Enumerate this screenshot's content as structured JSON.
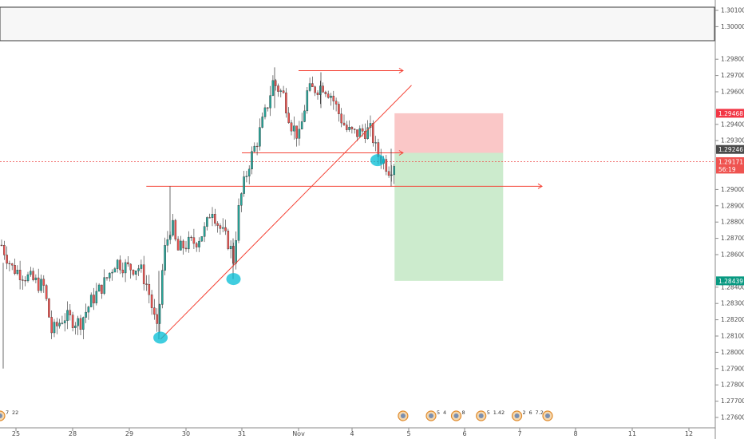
{
  "chart_data": {
    "type": "candlestick",
    "x_ticks": [
      "25",
      "28",
      "29",
      "30",
      "31",
      "Nov",
      "4",
      "5",
      "6",
      "7",
      "8",
      "11",
      "12"
    ],
    "y_ticks": [
      "1.30100",
      "1.30000",
      "1.29800",
      "1.29700",
      "1.29600",
      "1.29400",
      "1.29300",
      "1.29000",
      "1.28900",
      "1.28800",
      "1.28700",
      "1.28600",
      "1.28400",
      "1.28300",
      "1.28200",
      "1.28100",
      "1.28000",
      "1.27900",
      "1.27800",
      "1.27700",
      "1.27600"
    ],
    "ylim": [
      1.2756,
      1.3015
    ],
    "grid": false,
    "colors": {
      "up": "#26a69a",
      "down": "#ef5350",
      "wick": "#2b2b2b",
      "line": "#f44336",
      "marker": "#00bcd4"
    },
    "price_badges": [
      {
        "label": "1.29468",
        "value": 1.29468,
        "color": "#f23645"
      },
      {
        "label": "1.29246",
        "value": 1.29246,
        "color": "#4a4a4a"
      },
      {
        "label": "1.29171",
        "value": 1.29171,
        "color": "#ef5350"
      },
      {
        "label": "56:19",
        "value": 1.29125,
        "color": "#ef5350"
      },
      {
        "label": "1.28439",
        "value": 1.28439,
        "color": "#089981"
      }
    ],
    "horizontal_rays": [
      {
        "value": 1.2973,
        "start": "Nov",
        "end": "4.9"
      },
      {
        "value": 1.29225,
        "start": "31",
        "end": "4.9"
      },
      {
        "value": 1.2902,
        "start": "29.3",
        "end": "7.4"
      }
    ],
    "trendline": {
      "from": [
        29.55,
        1.2808
      ],
      "to": [
        5.05,
        1.2964
      ]
    },
    "highlighted_points": [
      {
        "x": 29.55,
        "y": 1.2809
      },
      {
        "x": 30.85,
        "y": 1.2845
      },
      {
        "x": 4.45,
        "y": 1.2918
      }
    ],
    "risk_reward": {
      "entry": 1.29225,
      "stop": 1.29468,
      "target": 1.28439,
      "from": "4.75",
      "to": "6.7"
    },
    "dashed_price_line": 1.29171,
    "top_band": {
      "from": 1.3011,
      "to": 1.2991
    },
    "calendar_events": [
      {
        "x": "4.9",
        "labels": []
      },
      {
        "x": "5.4",
        "labels": [
          "5",
          "4"
        ]
      },
      {
        "x": "5.85",
        "labels": [
          "8"
        ]
      },
      {
        "x": "6.3",
        "labels": [
          "5",
          "1.42"
        ]
      },
      {
        "x": "6.95",
        "labels": [
          "2",
          "6",
          "7.2"
        ]
      },
      {
        "x": "7.5",
        "labels": []
      },
      {
        "x": "10.4",
        "labels": [
          "7",
          "22"
        ]
      }
    ]
  }
}
